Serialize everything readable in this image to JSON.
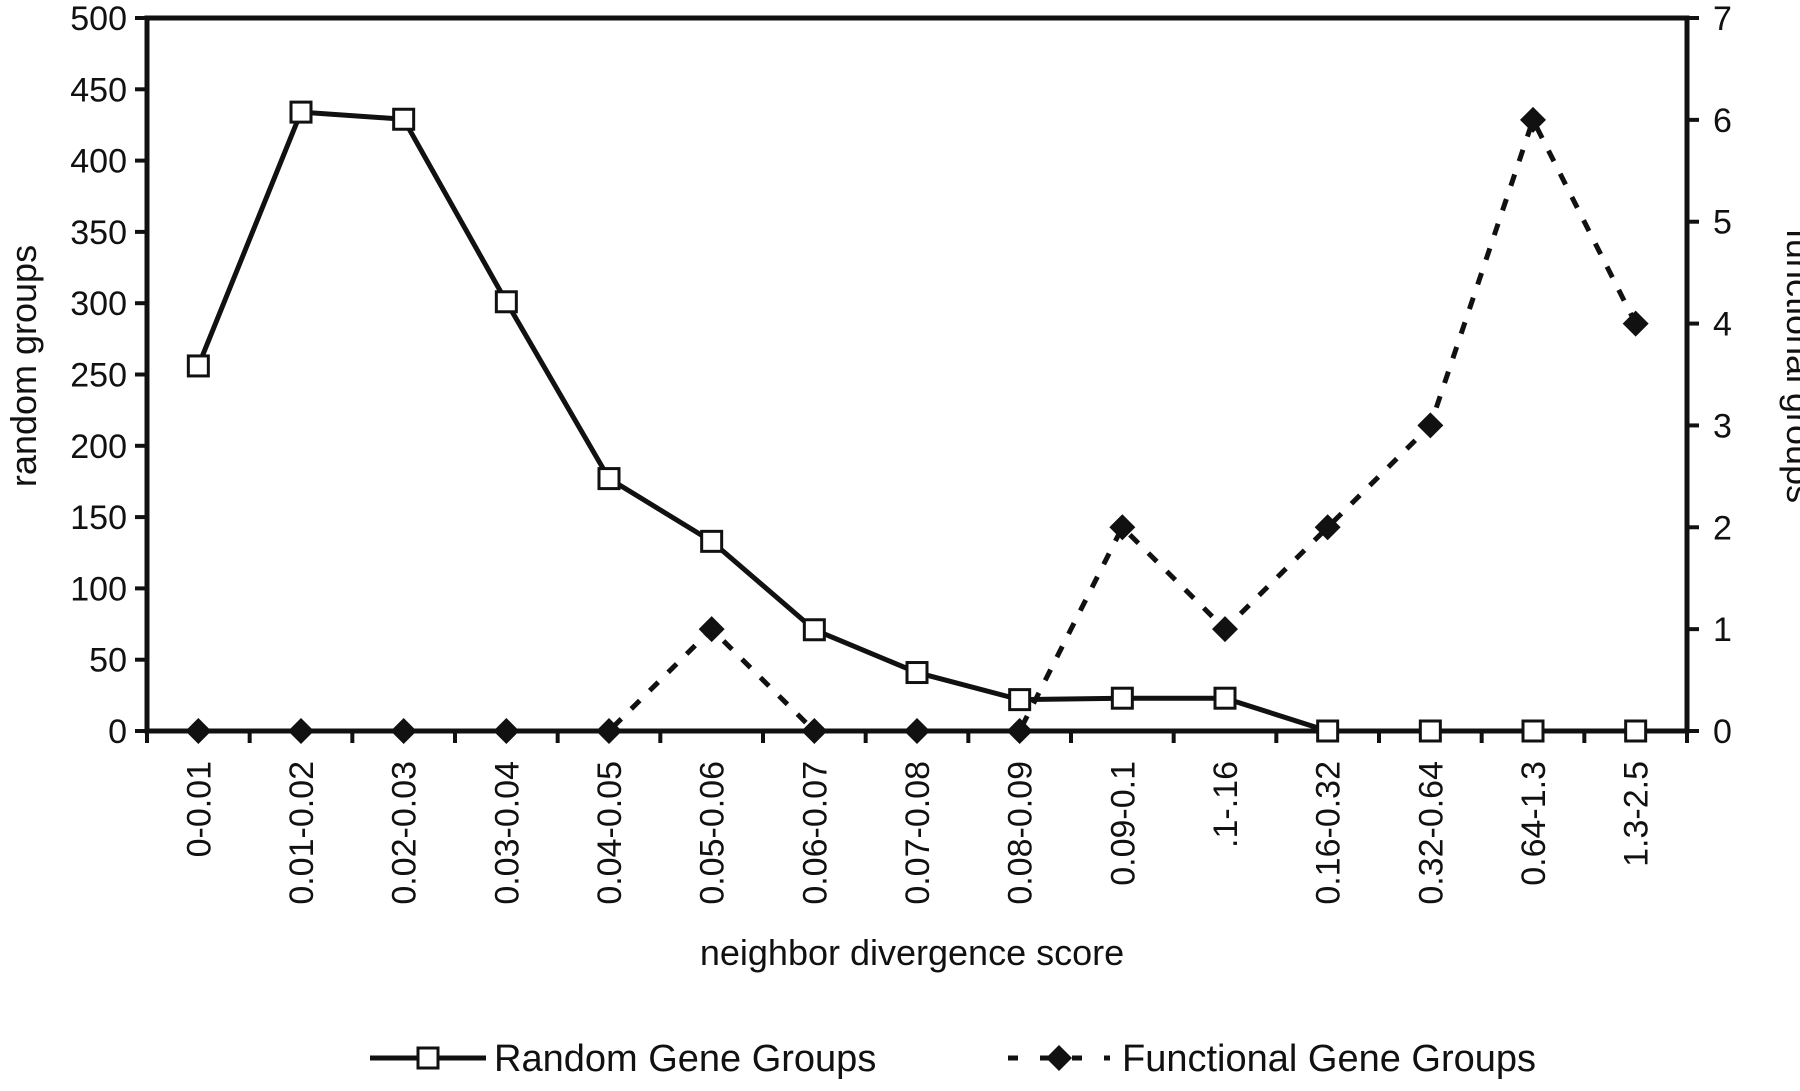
{
  "chart_data": {
    "type": "line",
    "categories": [
      "0-0.01",
      "0.01-0.02",
      "0.02-0.03",
      "0.03-0.04",
      "0.04-0.05",
      "0.05-0.06",
      "0.06-0.07",
      "0.07-0.08",
      "0.08-0.09",
      "0.09-0.1",
      ".1-.16",
      "0.16-0.32",
      "0.32-0.64",
      "0.64-1.3",
      "1.3-2.5"
    ],
    "xlabel": "neighbor divergence score",
    "ylabel": "random groups",
    "y2label": "functional groups",
    "ylim": [
      0,
      500
    ],
    "y2lim": [
      0,
      7
    ],
    "yticks": [
      "0",
      "50",
      "100",
      "150",
      "200",
      "250",
      "300",
      "350",
      "400",
      "450",
      "500"
    ],
    "y2ticks": [
      "0",
      "1",
      "2",
      "3",
      "4",
      "5",
      "6",
      "7"
    ],
    "series": [
      {
        "name": "Random Gene Groups",
        "axis": "left",
        "style": "solid",
        "marker": "open-square",
        "values": [
          256,
          434,
          429,
          301,
          177,
          133,
          71,
          41,
          22,
          23,
          23,
          0,
          0,
          0,
          0
        ]
      },
      {
        "name": "Functional Gene Groups",
        "axis": "right",
        "style": "dashed",
        "marker": "filled-diamond",
        "values": [
          0,
          0,
          0,
          0,
          0,
          1,
          0,
          0,
          0,
          2,
          1,
          2,
          3,
          6,
          4
        ]
      }
    ],
    "legend_position": "bottom",
    "grid": false,
    "colors": {
      "line": "#111111",
      "background": "#ffffff"
    }
  }
}
